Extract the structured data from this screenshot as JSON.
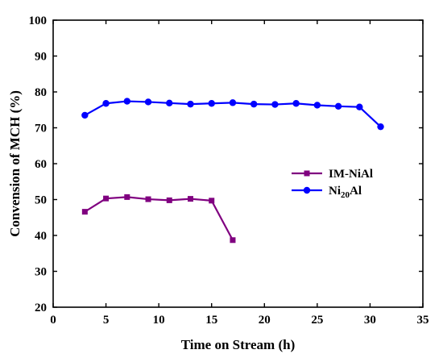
{
  "chart_data": {
    "type": "line",
    "title": "",
    "xlabel": "Time on Stream (h)",
    "ylabel": "Convension of MCH (%)",
    "xlim": [
      0,
      35
    ],
    "ylim": [
      20,
      100
    ],
    "xticks": [
      0,
      5,
      10,
      15,
      20,
      25,
      30,
      35
    ],
    "yticks": [
      20,
      30,
      40,
      50,
      60,
      70,
      80,
      90,
      100
    ],
    "grid": false,
    "legend_position": "center-right",
    "series": [
      {
        "name": "IM-NiAl",
        "name_main": "IM-NiAl",
        "name_sub": "",
        "name_tail": "",
        "color": "#800080",
        "marker": "square",
        "x": [
          3,
          5,
          7,
          9,
          11,
          13,
          15,
          17
        ],
        "y": [
          46.6,
          50.3,
          50.7,
          50.1,
          49.8,
          50.2,
          49.7,
          38.7
        ]
      },
      {
        "name": "Ni20Al",
        "name_main": "Ni",
        "name_sub": "20",
        "name_tail": "Al",
        "color": "#0000FF",
        "marker": "circle",
        "x": [
          3,
          5,
          7,
          9,
          11,
          13,
          15,
          17,
          19,
          21,
          23,
          25,
          27,
          29,
          31
        ],
        "y": [
          73.5,
          76.8,
          77.4,
          77.2,
          76.9,
          76.6,
          76.8,
          77.0,
          76.6,
          76.5,
          76.8,
          76.3,
          76.0,
          75.8,
          70.3
        ]
      }
    ]
  }
}
